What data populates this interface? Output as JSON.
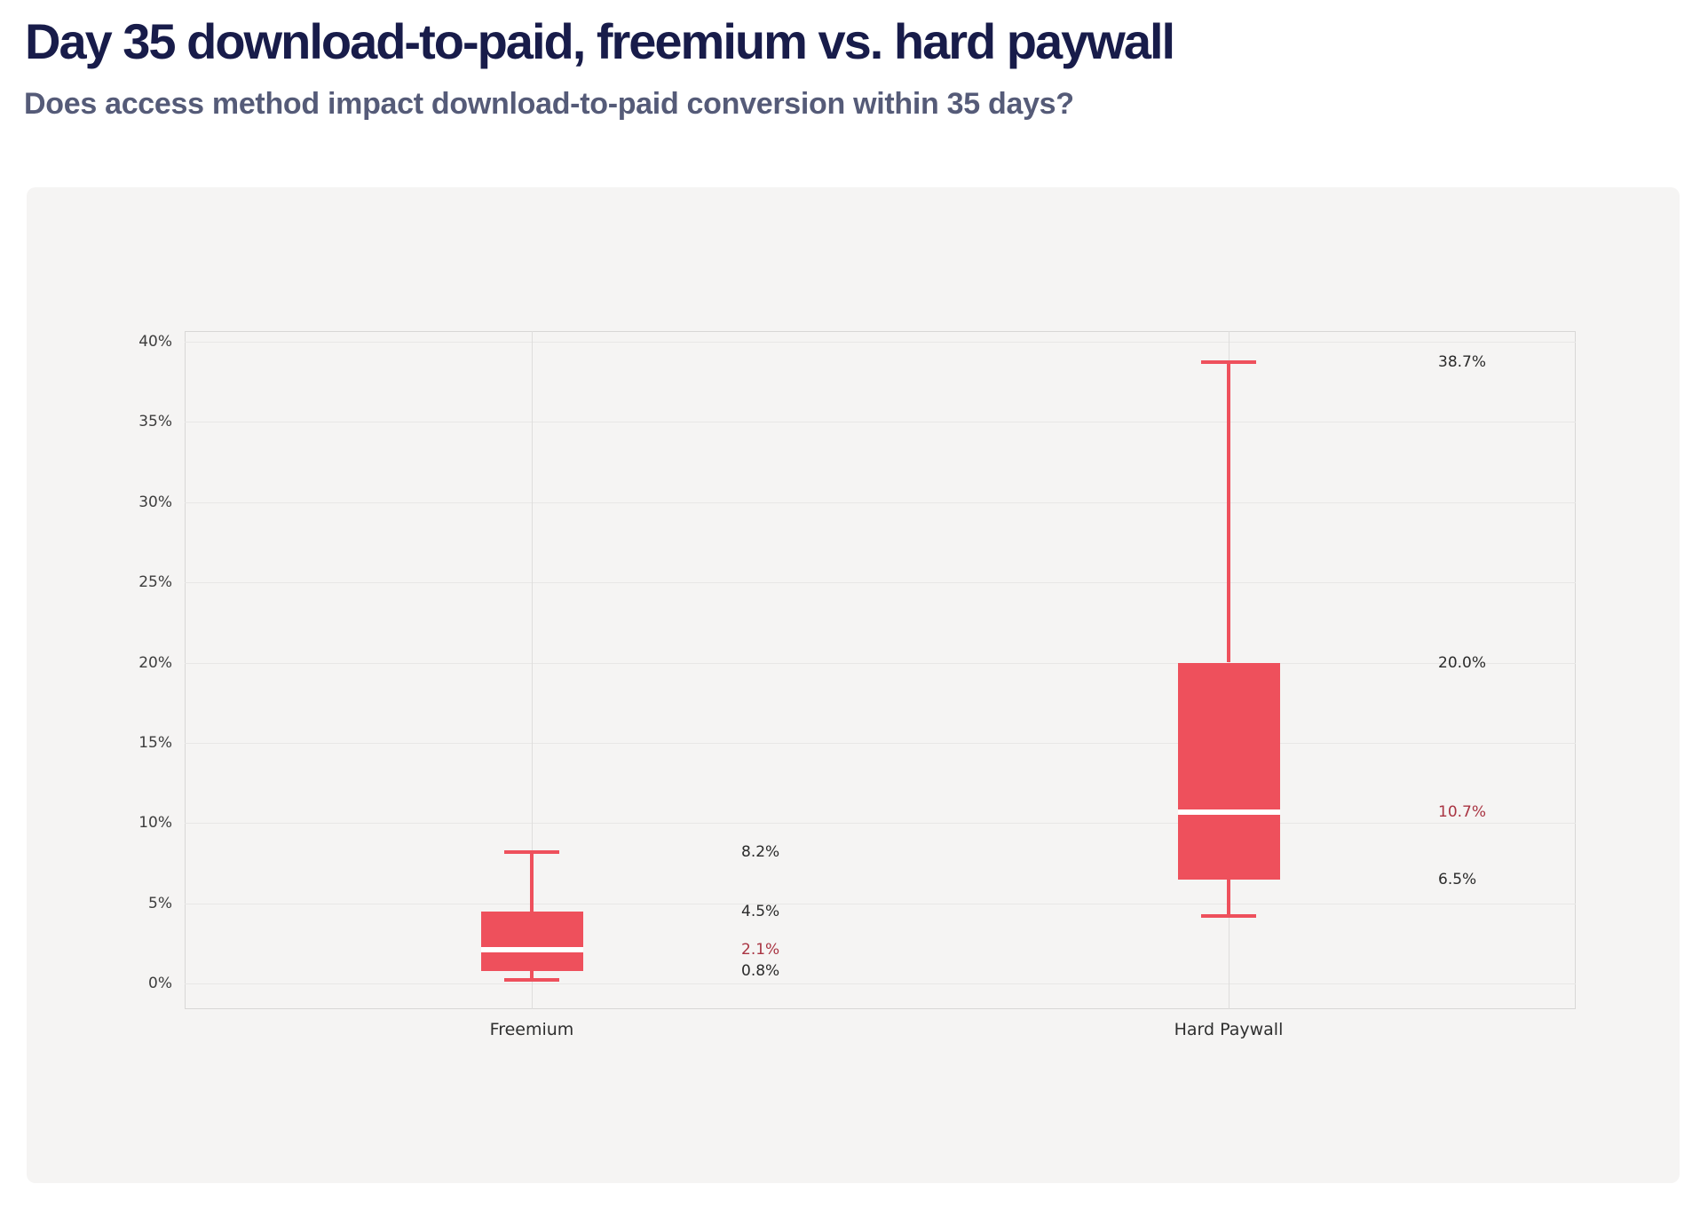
{
  "header": {
    "title": "Day 35 download-to-paid, freemium vs. hard paywall",
    "subtitle": "Does access method impact download-to-paid conversion within 35 days?"
  },
  "colors": {
    "title_text": "#181c4a",
    "subtitle_text": "#555b78",
    "panel_background": "#f5f4f3",
    "box_fill": "#ee505c",
    "whisker": "#ee505c",
    "median_line": "#ffffff",
    "median_label": "#a93442",
    "annotation_label": "#2b2b2b",
    "tick_label": "#3d3d3d",
    "gridline": "#e8e7e6",
    "category_line": "#dedddc",
    "axis_border": "#d8d7d6"
  },
  "chart_data": {
    "type": "box",
    "title": "Day 35 download-to-paid, freemium vs. hard paywall",
    "subtitle": "Does access method impact download-to-paid conversion within 35 days?",
    "categories": [
      "Freemium",
      "Hard Paywall"
    ],
    "ylim": [
      0,
      40
    ],
    "ytick_step": 5,
    "ytick_labels": [
      "0%",
      "5%",
      "10%",
      "15%",
      "20%",
      "25%",
      "30%",
      "35%",
      "40%"
    ],
    "grid": "horizontal",
    "legend": "none",
    "boxes": [
      {
        "category": "Freemium",
        "whisker_low": 0.2,
        "q1": 0.8,
        "median": 2.1,
        "q3": 4.5,
        "whisker_high": 8.2,
        "annotations": [
          {
            "text": "8.2%",
            "value": 8.2,
            "emphasis": false
          },
          {
            "text": "4.5%",
            "value": 4.5,
            "emphasis": false
          },
          {
            "text": "2.1%",
            "value": 2.1,
            "emphasis": true
          },
          {
            "text": "0.8%",
            "value": 0.8,
            "emphasis": false
          }
        ]
      },
      {
        "category": "Hard Paywall",
        "whisker_low": 4.2,
        "q1": 6.5,
        "median": 10.7,
        "q3": 20.0,
        "whisker_high": 38.7,
        "annotations": [
          {
            "text": "38.7%",
            "value": 38.7,
            "emphasis": false
          },
          {
            "text": "20.0%",
            "value": 20.0,
            "emphasis": false
          },
          {
            "text": "10.7%",
            "value": 10.7,
            "emphasis": true
          },
          {
            "text": "6.5%",
            "value": 6.5,
            "emphasis": false
          }
        ]
      }
    ]
  }
}
